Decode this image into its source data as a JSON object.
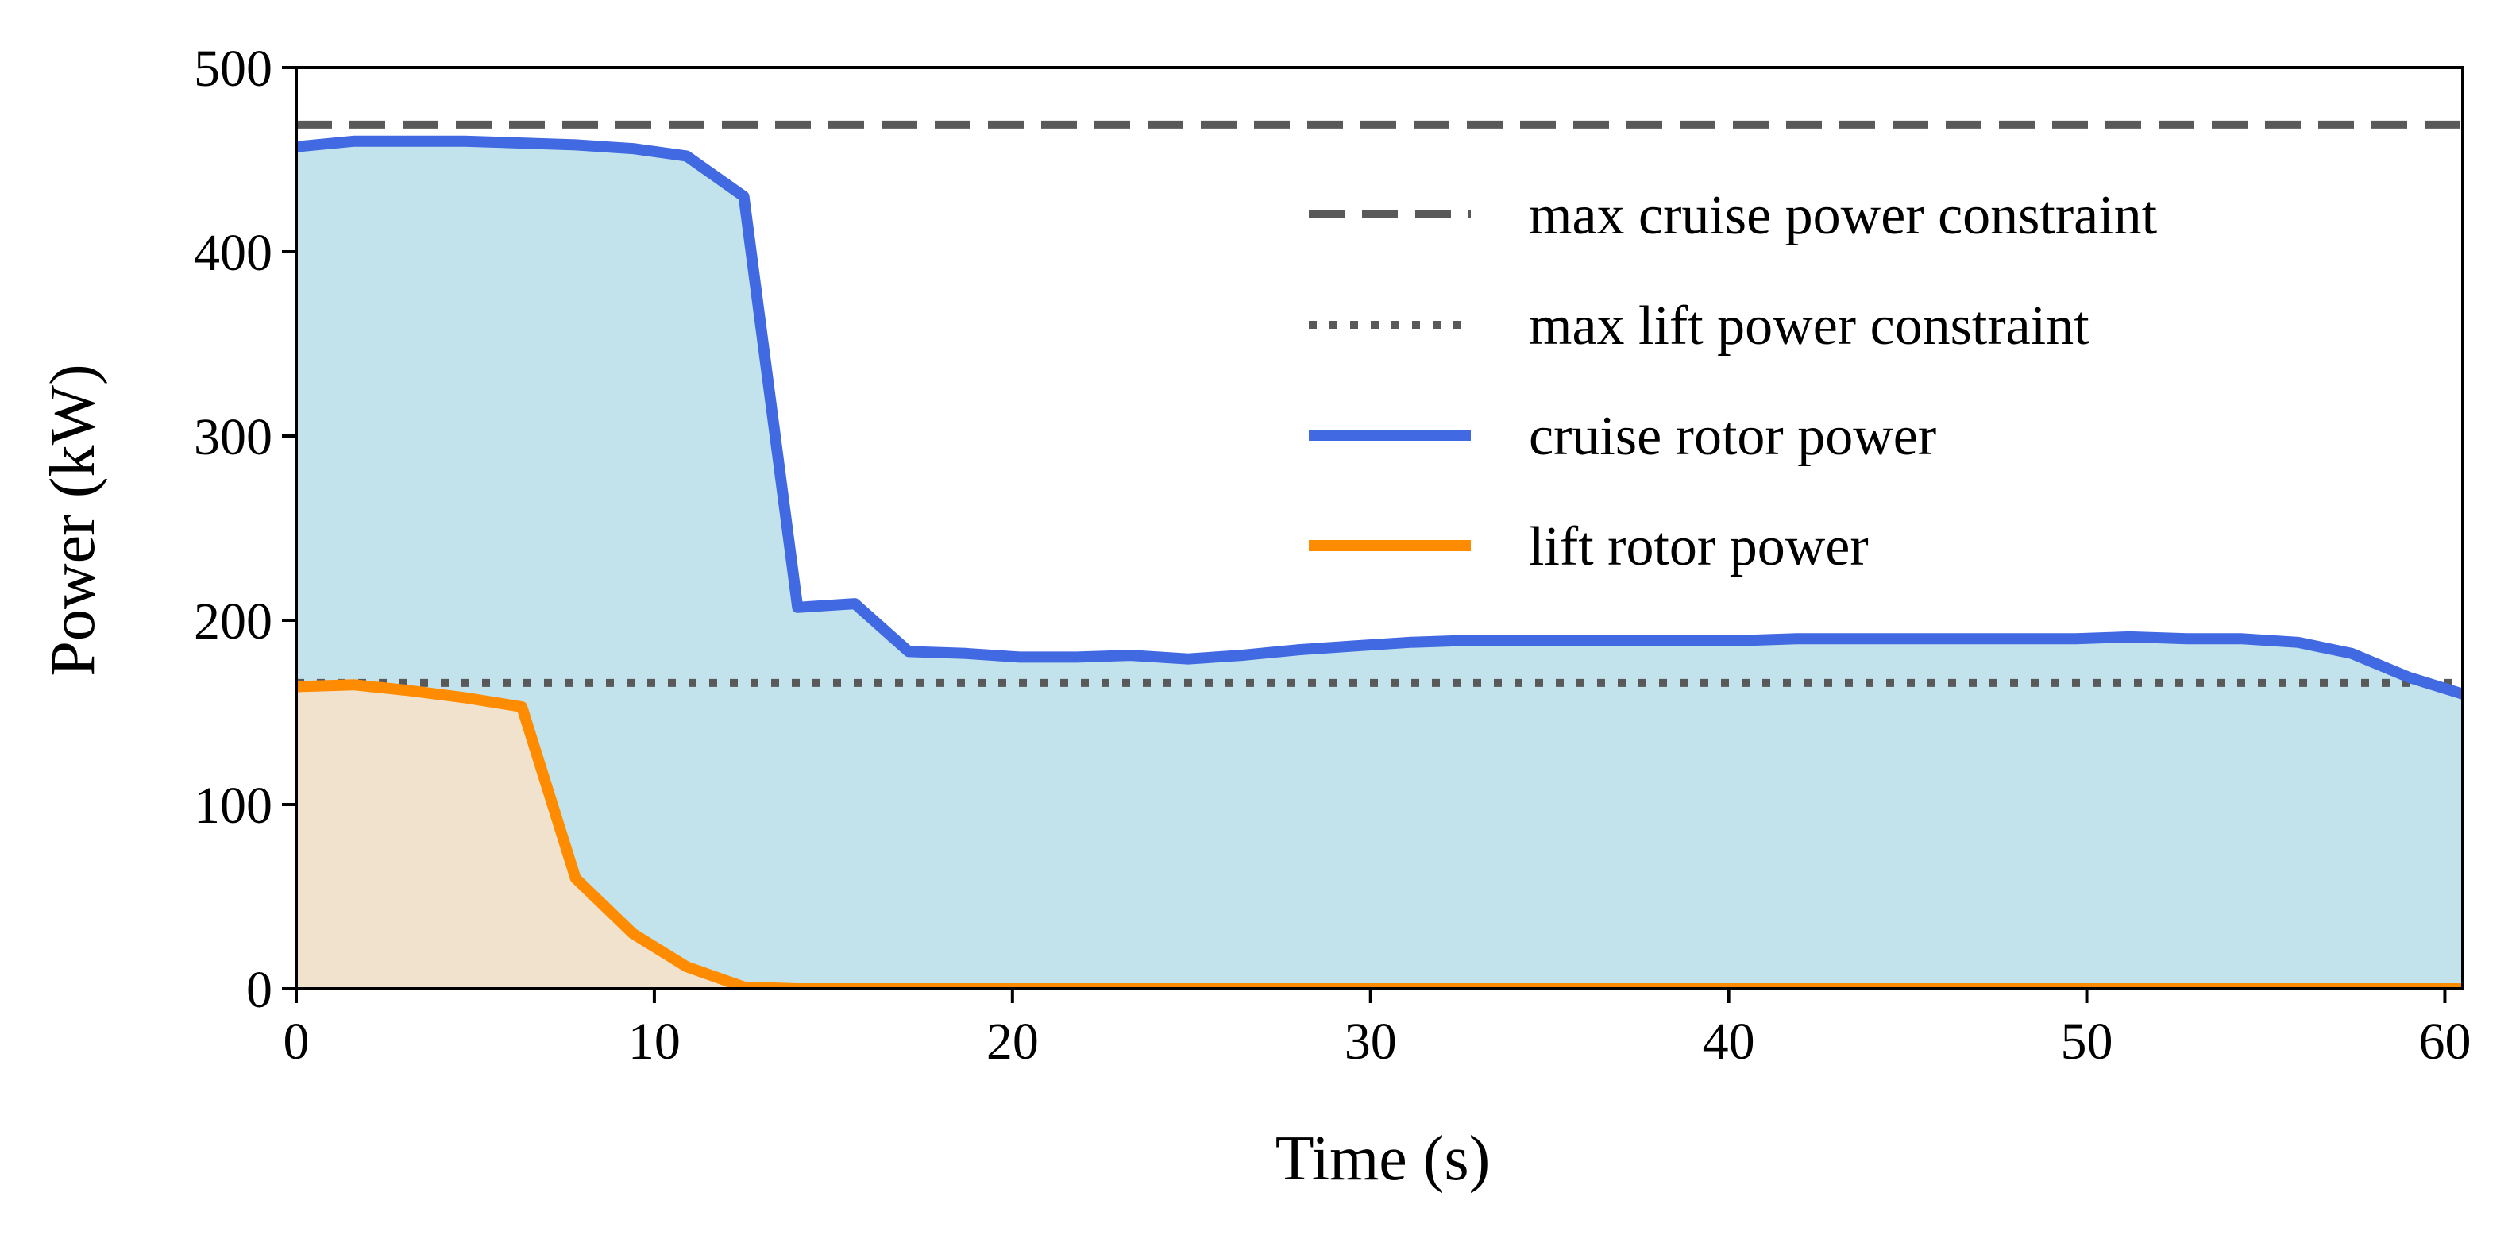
{
  "chart_data": {
    "type": "area",
    "title": "",
    "xlabel": "Time (s)",
    "ylabel": "Power (kW)",
    "xlim": [
      0,
      60.5
    ],
    "ylim": [
      0,
      500
    ],
    "xticks": [
      0,
      10,
      20,
      30,
      40,
      50,
      60
    ],
    "yticks": [
      0,
      100,
      200,
      300,
      400,
      500
    ],
    "grid": false,
    "legend_position": "upper-right",
    "constraints": [
      {
        "name": "max cruise power constraint",
        "value": 469,
        "style": "dashed",
        "color": "#595959"
      },
      {
        "name": "max lift power constraint",
        "value": 166,
        "style": "dotted",
        "color": "#595959"
      }
    ],
    "series": [
      {
        "name": "cruise rotor power",
        "color": "#4169e1",
        "fill": "#c2e3ec",
        "x": [
          0,
          1.6,
          3.1,
          4.7,
          6.3,
          7.8,
          9.4,
          10.9,
          12.5,
          14.0,
          15.6,
          17.1,
          18.7,
          20.2,
          21.8,
          23.3,
          24.9,
          26.4,
          28.0,
          29.5,
          31.1,
          32.6,
          34.2,
          35.7,
          37.3,
          38.8,
          40.4,
          41.9,
          43.5,
          45.0,
          46.6,
          48.1,
          49.7,
          51.2,
          52.8,
          54.3,
          55.9,
          57.4,
          59.0,
          60.5
        ],
        "values": [
          457,
          460,
          460,
          460,
          459,
          458,
          456,
          452,
          430,
          207,
          209,
          183,
          182,
          180,
          180,
          181,
          179,
          181,
          184,
          186,
          188,
          189,
          189,
          189,
          189,
          189,
          189,
          190,
          190,
          190,
          190,
          190,
          190,
          191,
          190,
          190,
          188,
          182,
          169,
          160
        ]
      },
      {
        "name": "lift rotor power",
        "color": "#ff8c00",
        "fill": "#f0e2cc",
        "x": [
          0,
          1.6,
          3.1,
          4.7,
          6.3,
          7.8,
          9.4,
          10.9,
          12.5,
          14.0,
          20,
          30,
          40,
          50,
          60.5
        ],
        "values": [
          164,
          165,
          162,
          158,
          153,
          60,
          30,
          12,
          1,
          0,
          0,
          0,
          0,
          0,
          0
        ]
      }
    ]
  }
}
